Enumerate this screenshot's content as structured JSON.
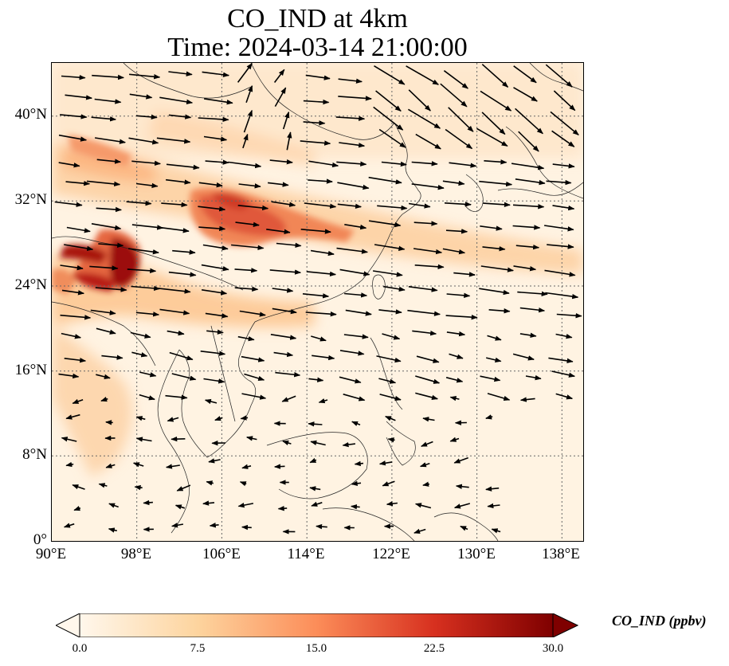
{
  "title": {
    "line1": "CO_IND at 4km",
    "line2": "Time: 2024-03-14 21:00:00"
  },
  "map": {
    "lon_range": [
      90,
      140
    ],
    "lat_range": [
      0,
      45
    ],
    "lat_ticks": [
      "40°N",
      "32°N",
      "24°N",
      "16°N",
      "8°N",
      "0°"
    ],
    "lon_ticks": [
      "90°E",
      "98°E",
      "106°E",
      "114°E",
      "122°E",
      "130°E",
      "138°E"
    ],
    "gridlines": true,
    "field": "CO_IND",
    "wind_vectors": true
  },
  "colorbar": {
    "label": "CO_IND (ppbv)",
    "ticks": [
      "0.0",
      "7.5",
      "15.0",
      "22.5",
      "30.0"
    ],
    "range": [
      0,
      30
    ],
    "extend": "both",
    "colormap": "OrRd",
    "colors": [
      "#fff7ec",
      "#fdd49e",
      "#fc8d59",
      "#d7301f",
      "#7f0000"
    ]
  }
}
